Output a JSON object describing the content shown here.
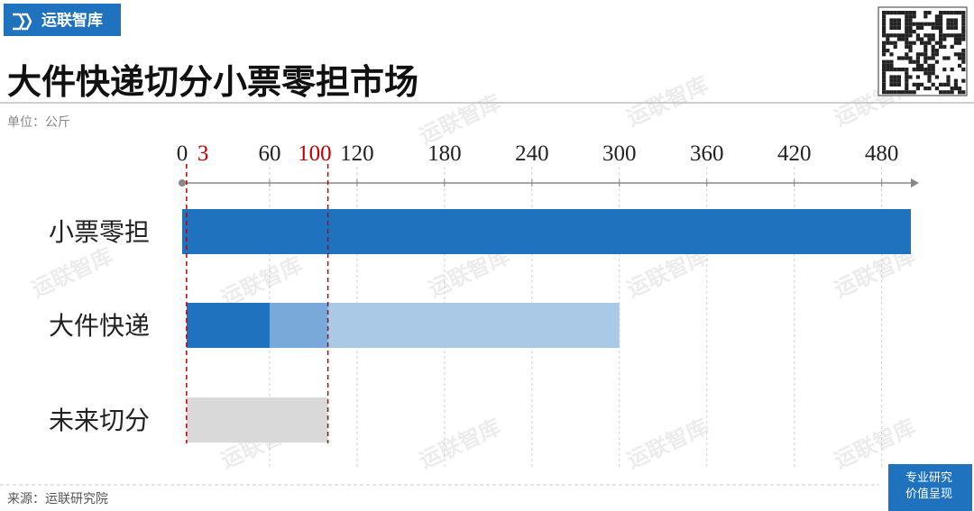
{
  "header": {
    "logo": "运联智库",
    "title": "大件快递切分小票零担市场",
    "unit": "单位：公斤"
  },
  "chart_data": {
    "type": "range-bar",
    "categories": [
      "小票零担",
      "大件快递",
      "未来切分"
    ],
    "ranges": [
      [
        {
          "from": 0,
          "to": 500,
          "color": "#1f72bd"
        }
      ],
      [
        {
          "from": 3,
          "to": 60,
          "color": "#1f72bd"
        },
        {
          "from": 60,
          "to": 100,
          "color": "#79a9d9"
        },
        {
          "from": 100,
          "to": 300,
          "color": "#a9c9e7"
        }
      ],
      [
        {
          "from": 3,
          "to": 100,
          "color": "#d9d9d9"
        }
      ]
    ],
    "xlim": [
      0,
      500
    ],
    "xticks": [
      0,
      60,
      120,
      180,
      240,
      300,
      360,
      420,
      480
    ],
    "highlight_ticks": [
      3,
      100
    ],
    "highlight_color": "#c00000",
    "grid": true
  },
  "footer": {
    "source": "来源：运联研究院",
    "badge": [
      "专业研究",
      "价值呈现"
    ]
  },
  "watermark": "运联智库"
}
